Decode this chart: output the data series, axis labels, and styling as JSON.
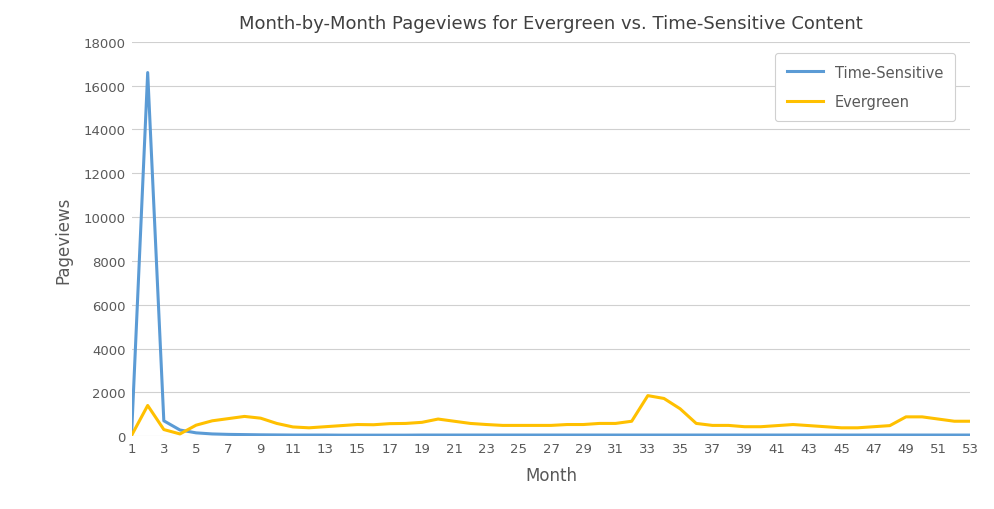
{
  "title": "Month-by-Month Pageviews for Evergreen vs. Time-Sensitive Content",
  "xlabel": "Month",
  "ylabel": "Pageviews",
  "time_sensitive_color": "#5B9BD5",
  "evergreen_color": "#FFC000",
  "background_color": "#ffffff",
  "grid_color": "#D0D0D0",
  "title_color": "#404040",
  "axis_color": "#595959",
  "legend_label_ts": "Time-Sensitive",
  "legend_label_eg": "Evergreen",
  "ylim": [
    0,
    18000
  ],
  "yticks": [
    0,
    2000,
    4000,
    6000,
    8000,
    10000,
    12000,
    14000,
    16000,
    18000
  ],
  "time_sensitive": [
    50,
    16600,
    700,
    280,
    150,
    100,
    80,
    70,
    60,
    55,
    50,
    50,
    50,
    45,
    45,
    45,
    45,
    45,
    50,
    50,
    50,
    50,
    50,
    50,
    50,
    50,
    50,
    50,
    50,
    50,
    50,
    50,
    50,
    50,
    50,
    50,
    50,
    50,
    50,
    50,
    50,
    50,
    50,
    50,
    50,
    50,
    50,
    50,
    50,
    50,
    50,
    50,
    50
  ],
  "evergreen": [
    30,
    1400,
    300,
    100,
    500,
    700,
    800,
    900,
    820,
    580,
    420,
    380,
    430,
    480,
    530,
    520,
    570,
    580,
    630,
    780,
    680,
    580,
    530,
    490,
    490,
    490,
    490,
    530,
    530,
    580,
    580,
    680,
    1850,
    1720,
    1250,
    580,
    490,
    490,
    430,
    430,
    480,
    530,
    480,
    430,
    380,
    380,
    430,
    480,
    880,
    880,
    780,
    680,
    680
  ]
}
